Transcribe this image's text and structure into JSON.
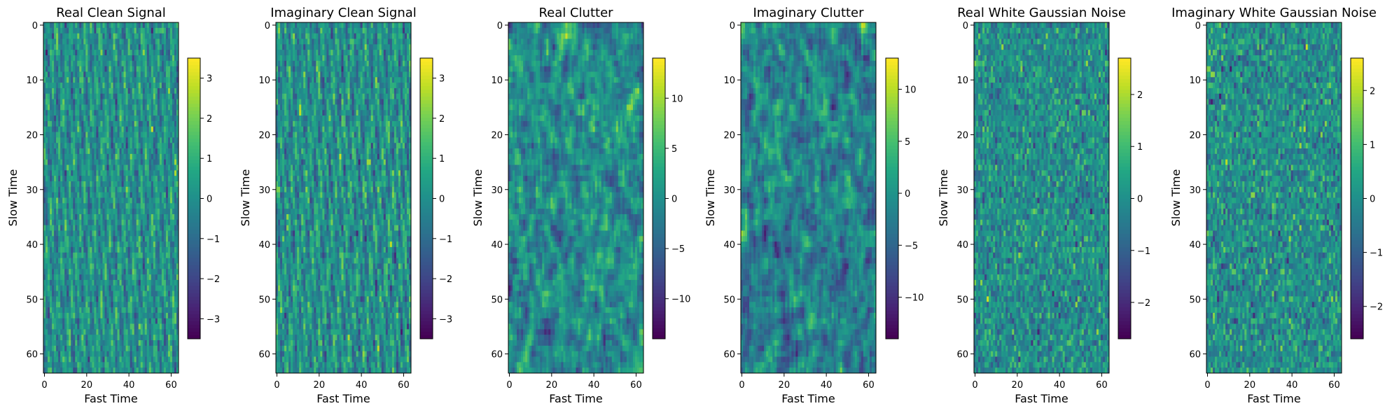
{
  "chart_data": [
    {
      "type": "heatmap",
      "title": "Real Clean Signal",
      "xlabel": "Fast Time",
      "ylabel": "Slow Time",
      "x_ticks": [
        0,
        20,
        40,
        60
      ],
      "y_ticks": [
        0,
        10,
        20,
        30,
        40,
        50,
        60
      ],
      "grid_size": [
        64,
        64
      ],
      "colormap": "viridis",
      "colorbar": {
        "range": [
          -3.5,
          3.5
        ],
        "ticks": [
          -3,
          -2,
          -1,
          0,
          1,
          2,
          3
        ]
      },
      "pattern": "stripes"
    },
    {
      "type": "heatmap",
      "title": "Imaginary Clean Signal",
      "xlabel": "Fast Time",
      "ylabel": "Slow Time",
      "x_ticks": [
        0,
        20,
        40,
        60
      ],
      "y_ticks": [
        0,
        10,
        20,
        30,
        40,
        50,
        60
      ],
      "grid_size": [
        64,
        64
      ],
      "colormap": "viridis",
      "colorbar": {
        "range": [
          -3.5,
          3.5
        ],
        "ticks": [
          -3,
          -2,
          -1,
          0,
          1,
          2,
          3
        ]
      },
      "pattern": "stripes"
    },
    {
      "type": "heatmap",
      "title": "Real Clutter",
      "xlabel": "Fast Time",
      "ylabel": "Slow Time",
      "x_ticks": [
        0,
        20,
        40,
        60
      ],
      "y_ticks": [
        0,
        10,
        20,
        30,
        40,
        50,
        60
      ],
      "grid_size": [
        64,
        64
      ],
      "colormap": "viridis",
      "colorbar": {
        "range": [
          -14,
          14
        ],
        "ticks": [
          -10,
          -5,
          0,
          5,
          10
        ]
      },
      "pattern": "smooth-noise"
    },
    {
      "type": "heatmap",
      "title": "Imaginary Clutter",
      "xlabel": "Fast Time",
      "ylabel": "Slow Time",
      "x_ticks": [
        0,
        20,
        40,
        60
      ],
      "y_ticks": [
        0,
        10,
        20,
        30,
        40,
        50,
        60
      ],
      "grid_size": [
        64,
        64
      ],
      "colormap": "viridis",
      "colorbar": {
        "range": [
          -14,
          13
        ],
        "ticks": [
          -10,
          -5,
          0,
          5,
          10
        ]
      },
      "pattern": "smooth-noise"
    },
    {
      "type": "heatmap",
      "title": "Real White Gaussian Noise",
      "xlabel": "Fast Time",
      "ylabel": "Slow Time",
      "x_ticks": [
        0,
        20,
        40,
        60
      ],
      "y_ticks": [
        0,
        10,
        20,
        30,
        40,
        50,
        60
      ],
      "grid_size": [
        64,
        64
      ],
      "colormap": "viridis",
      "colorbar": {
        "range": [
          -2.7,
          2.7
        ],
        "ticks": [
          -2,
          -1,
          0,
          1,
          2
        ]
      },
      "pattern": "white-noise"
    },
    {
      "type": "heatmap",
      "title": "Imaginary White Gaussian Noise",
      "xlabel": "Fast Time",
      "ylabel": "Slow Time",
      "x_ticks": [
        0,
        20,
        40,
        60
      ],
      "y_ticks": [
        0,
        10,
        20,
        30,
        40,
        50,
        60
      ],
      "grid_size": [
        64,
        64
      ],
      "colormap": "viridis",
      "colorbar": {
        "range": [
          -2.6,
          2.6
        ],
        "ticks": [
          -2,
          -1,
          0,
          1,
          2
        ]
      },
      "pattern": "white-noise"
    }
  ]
}
